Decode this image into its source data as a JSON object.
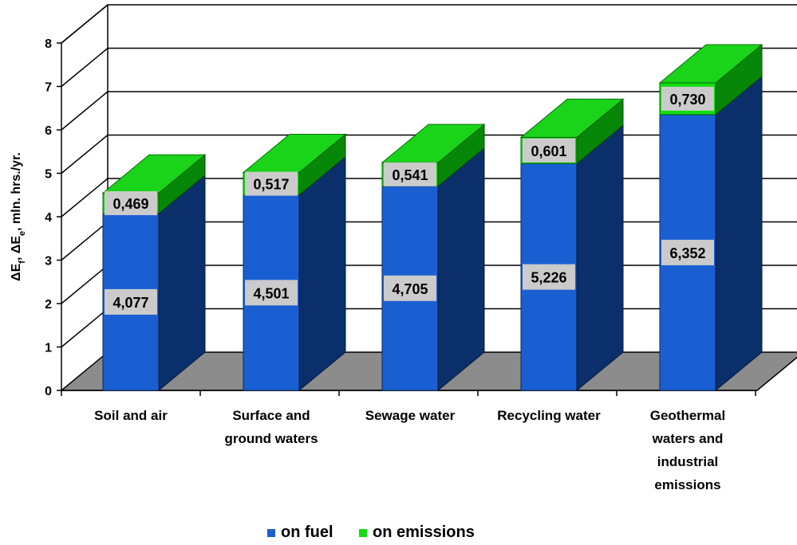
{
  "chart_data": {
    "type": "bar",
    "stacked": true,
    "three_d": true,
    "categories": [
      [
        "Soil and air"
      ],
      [
        "Surface and",
        "ground waters"
      ],
      [
        "Sewage water"
      ],
      [
        "Recycling water"
      ],
      [
        "Geothermal",
        "waters and",
        "industrial",
        "emissions"
      ]
    ],
    "series": [
      {
        "name": "on fuel",
        "values": [
          4.077,
          4.501,
          4.705,
          5.226,
          6.352
        ],
        "labels": [
          "4,077",
          "4,501",
          "4,705",
          "5,226",
          "6,352"
        ]
      },
      {
        "name": "on emissions",
        "values": [
          0.469,
          0.517,
          0.541,
          0.601,
          0.73
        ],
        "labels": [
          "0,469",
          "0,517",
          "0,541",
          "0,601",
          "0,730"
        ]
      }
    ],
    "ylabel": "ΔE_f, ΔE_e, mln. hrs./yr.",
    "ylim": [
      0,
      8
    ],
    "yticks": [
      "0",
      "1",
      "2",
      "3",
      "4",
      "5",
      "6",
      "7",
      "8"
    ],
    "grid": true,
    "legend": "bottom",
    "colors": {
      "fuel_front": "#1a5fd2",
      "fuel_side": "#0a2f6b",
      "emis_front": "#12dd12",
      "emis_side": "#078707",
      "emis_top": "#1ad41a",
      "floor": "#8c8c8c",
      "label_bg": "#cbcbcb"
    }
  }
}
